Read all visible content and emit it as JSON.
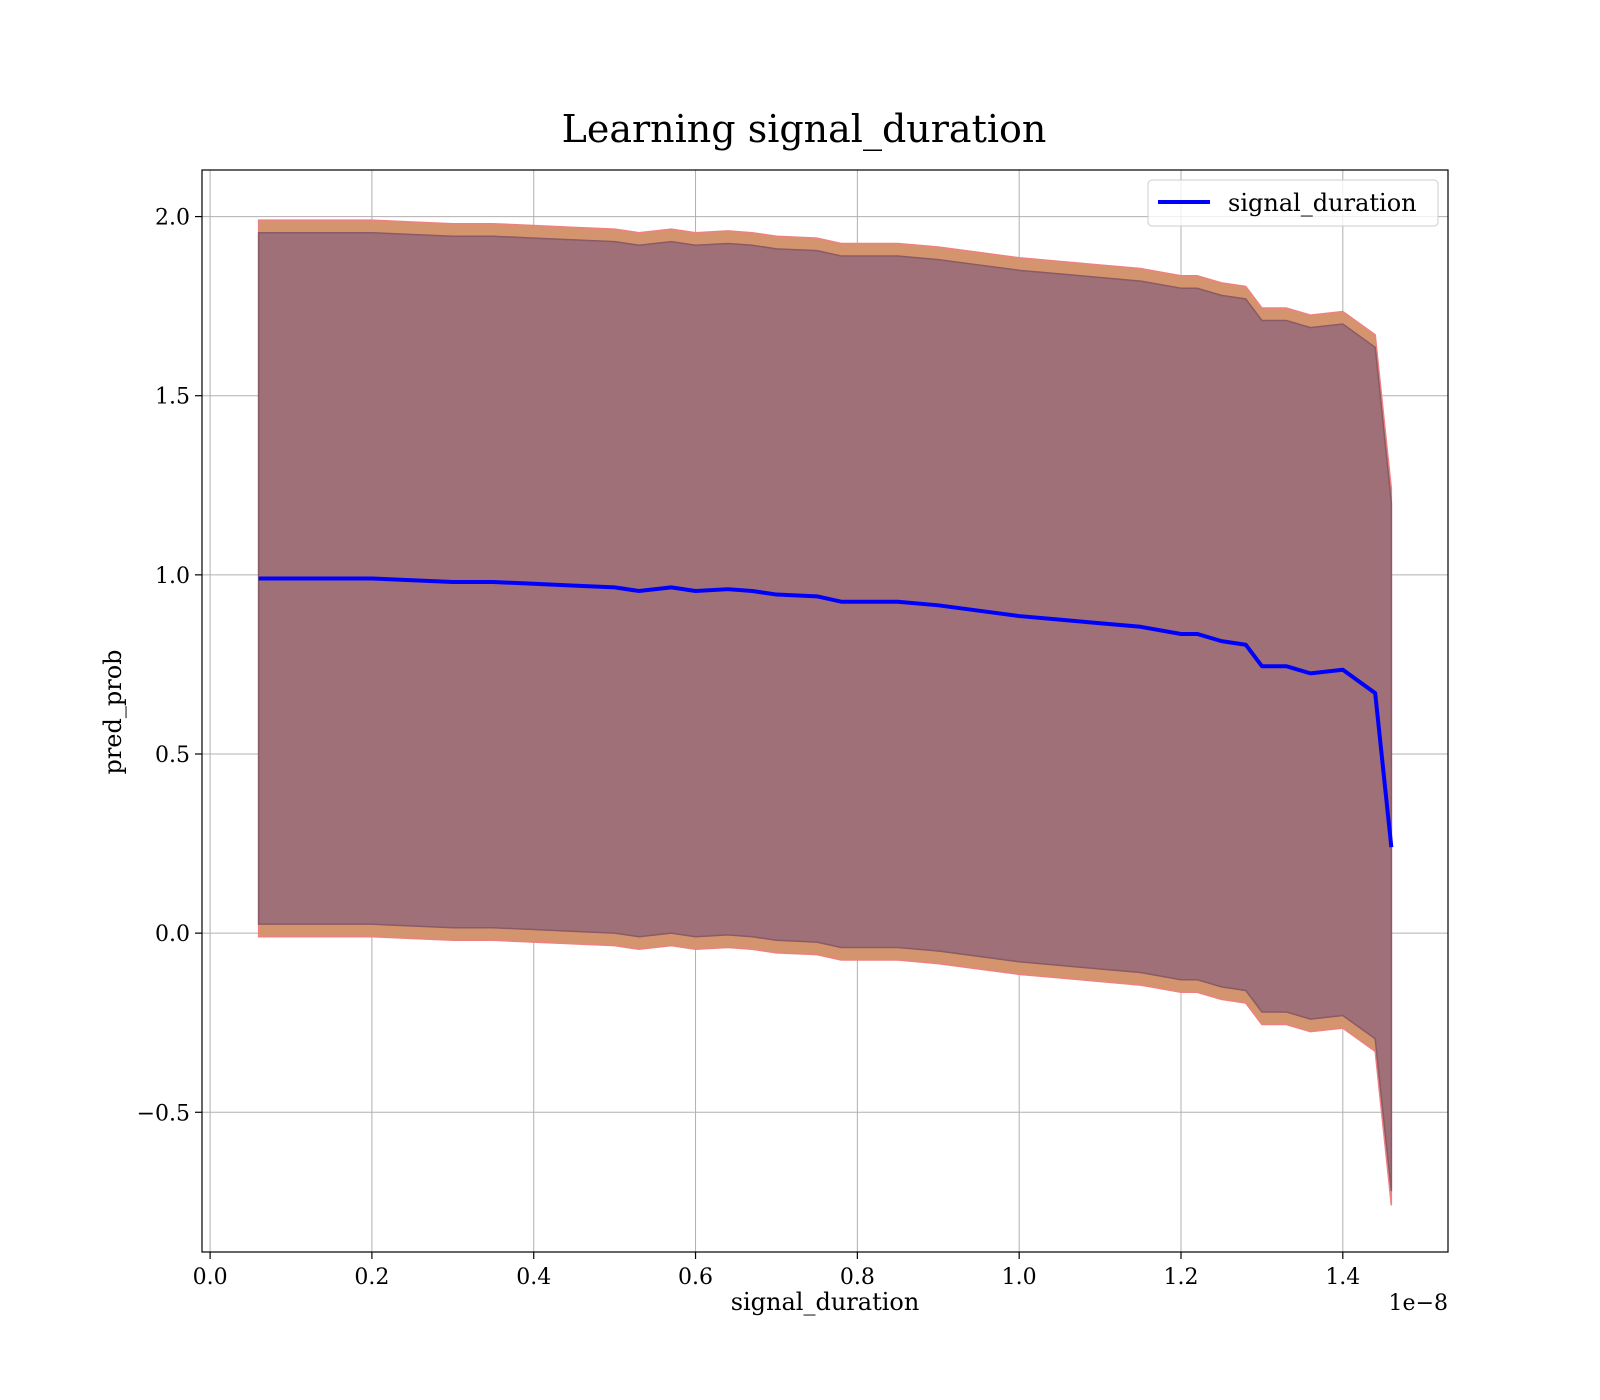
{
  "chart_data": {
    "type": "line",
    "title": "Learning signal_duration",
    "xlabel": "signal_duration",
    "ylabel": "pred_prob",
    "x_offset_label": "1e−8",
    "xlim": [
      -0.01,
      1.53
    ],
    "ylim": [
      -0.89,
      2.13
    ],
    "x_ticks": [
      0.0,
      0.2,
      0.4,
      0.6,
      0.8,
      1.0,
      1.2,
      1.4
    ],
    "x_tick_labels": [
      "0.0",
      "0.2",
      "0.4",
      "0.6",
      "0.8",
      "1.0",
      "1.2",
      "1.4"
    ],
    "y_ticks": [
      -0.5,
      0.0,
      0.5,
      1.0,
      1.5,
      2.0
    ],
    "y_tick_labels": [
      "−0.5",
      "0.0",
      "0.5",
      "1.0",
      "1.5",
      "2.0"
    ],
    "grid": true,
    "legend": {
      "position": "top-right",
      "entries": [
        "signal_duration"
      ]
    },
    "series": [
      {
        "name": "signal_duration",
        "color": "#0000ff",
        "x": [
          0.06,
          0.1,
          0.15,
          0.2,
          0.25,
          0.3,
          0.35,
          0.4,
          0.45,
          0.5,
          0.53,
          0.57,
          0.6,
          0.64,
          0.67,
          0.7,
          0.75,
          0.78,
          0.8,
          0.85,
          0.9,
          0.95,
          1.0,
          1.05,
          1.1,
          1.15,
          1.2,
          1.22,
          1.25,
          1.28,
          1.3,
          1.33,
          1.36,
          1.4,
          1.44,
          1.46
        ],
        "y": [
          0.99,
          0.99,
          0.99,
          0.99,
          0.985,
          0.98,
          0.98,
          0.975,
          0.97,
          0.965,
          0.955,
          0.965,
          0.955,
          0.96,
          0.955,
          0.945,
          0.94,
          0.925,
          0.925,
          0.925,
          0.915,
          0.9,
          0.885,
          0.875,
          0.865,
          0.855,
          0.835,
          0.835,
          0.815,
          0.805,
          0.745,
          0.745,
          0.725,
          0.735,
          0.67,
          0.24
        ]
      }
    ],
    "bands": [
      {
        "color": "#d4956e",
        "edge_color": "#f08080",
        "x": [
          0.06,
          0.1,
          0.15,
          0.2,
          0.25,
          0.3,
          0.35,
          0.4,
          0.45,
          0.5,
          0.53,
          0.57,
          0.6,
          0.64,
          0.67,
          0.7,
          0.75,
          0.78,
          0.8,
          0.85,
          0.9,
          0.95,
          1.0,
          1.05,
          1.1,
          1.15,
          1.2,
          1.22,
          1.25,
          1.28,
          1.3,
          1.33,
          1.36,
          1.4,
          1.44,
          1.46
        ],
        "upper": [
          1.99,
          1.99,
          1.99,
          1.99,
          1.985,
          1.98,
          1.98,
          1.975,
          1.97,
          1.965,
          1.955,
          1.965,
          1.955,
          1.96,
          1.955,
          1.945,
          1.94,
          1.925,
          1.925,
          1.925,
          1.915,
          1.9,
          1.885,
          1.875,
          1.865,
          1.855,
          1.835,
          1.835,
          1.815,
          1.805,
          1.745,
          1.745,
          1.725,
          1.735,
          1.67,
          1.24
        ],
        "lower": [
          -0.01,
          -0.01,
          -0.01,
          -0.01,
          -0.015,
          -0.02,
          -0.02,
          -0.025,
          -0.03,
          -0.035,
          -0.045,
          -0.035,
          -0.045,
          -0.04,
          -0.045,
          -0.055,
          -0.06,
          -0.075,
          -0.075,
          -0.075,
          -0.085,
          -0.1,
          -0.115,
          -0.125,
          -0.135,
          -0.145,
          -0.165,
          -0.165,
          -0.185,
          -0.195,
          -0.255,
          -0.255,
          -0.275,
          -0.265,
          -0.33,
          -0.76
        ]
      },
      {
        "color": "#a07078",
        "edge_color": "#8a5a66",
        "x": [
          0.06,
          0.1,
          0.15,
          0.2,
          0.25,
          0.3,
          0.35,
          0.4,
          0.45,
          0.5,
          0.53,
          0.57,
          0.6,
          0.64,
          0.67,
          0.7,
          0.75,
          0.78,
          0.8,
          0.85,
          0.9,
          0.95,
          1.0,
          1.05,
          1.1,
          1.15,
          1.2,
          1.22,
          1.25,
          1.28,
          1.3,
          1.33,
          1.36,
          1.4,
          1.44,
          1.46
        ],
        "upper": [
          1.955,
          1.955,
          1.955,
          1.955,
          1.95,
          1.945,
          1.945,
          1.94,
          1.935,
          1.93,
          1.92,
          1.93,
          1.92,
          1.925,
          1.92,
          1.91,
          1.905,
          1.89,
          1.89,
          1.89,
          1.88,
          1.865,
          1.85,
          1.84,
          1.83,
          1.82,
          1.8,
          1.8,
          1.78,
          1.77,
          1.71,
          1.71,
          1.69,
          1.7,
          1.635,
          1.2
        ],
        "lower": [
          0.025,
          0.025,
          0.025,
          0.025,
          0.02,
          0.015,
          0.015,
          0.01,
          0.005,
          0.0,
          -0.01,
          0.0,
          -0.01,
          -0.005,
          -0.01,
          -0.02,
          -0.025,
          -0.04,
          -0.04,
          -0.04,
          -0.05,
          -0.065,
          -0.08,
          -0.09,
          -0.1,
          -0.11,
          -0.13,
          -0.13,
          -0.15,
          -0.16,
          -0.22,
          -0.22,
          -0.24,
          -0.23,
          -0.295,
          -0.72
        ]
      }
    ]
  }
}
